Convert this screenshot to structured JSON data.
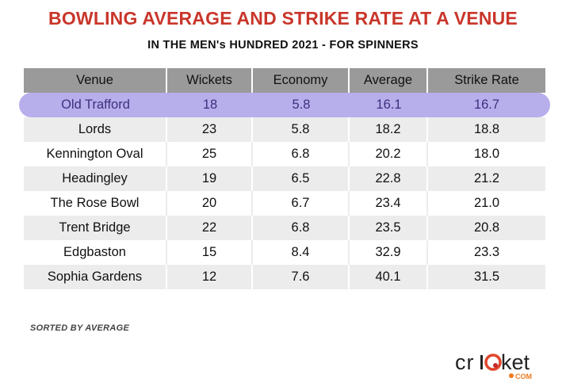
{
  "title": "BOWLING AVERAGE AND STRIKE RATE AT A VENUE",
  "subtitle": "IN THE MEN's HUNDRED 2021 - FOR SPINNERS",
  "note": "SORTED BY AVERAGE",
  "logo": {
    "text": "cricket",
    "suffix": ".COM"
  },
  "colors": {
    "title": "#c9362b",
    "header": "#9a9a9a",
    "highlight": "#b7aeec",
    "highlight_text": "#3e2f7c",
    "stripe": "#ececec"
  },
  "chart_data": {
    "type": "table",
    "title": "BOWLING AVERAGE AND STRIKE RATE AT A VENUE",
    "subtitle": "IN THE MEN's HUNDRED 2021 - FOR SPINNERS",
    "columns": [
      "Venue",
      "Wickets",
      "Economy",
      "Average",
      "Strike Rate"
    ],
    "highlighted_row": 0,
    "rows": [
      [
        "Old Trafford",
        "18",
        "5.8",
        "16.1",
        "16.7"
      ],
      [
        "Lords",
        "23",
        "5.8",
        "18.2",
        "18.8"
      ],
      [
        "Kennington Oval",
        "25",
        "6.8",
        "20.2",
        "18.0"
      ],
      [
        "Headingley",
        "19",
        "6.5",
        "22.8",
        "21.2"
      ],
      [
        "The Rose Bowl",
        "20",
        "6.7",
        "23.4",
        "21.0"
      ],
      [
        "Trent Bridge",
        "22",
        "6.8",
        "23.5",
        "20.8"
      ],
      [
        "Edgbaston",
        "15",
        "8.4",
        "32.9",
        "23.3"
      ],
      [
        "Sophia Gardens",
        "12",
        "7.6",
        "40.1",
        "31.5"
      ]
    ]
  }
}
